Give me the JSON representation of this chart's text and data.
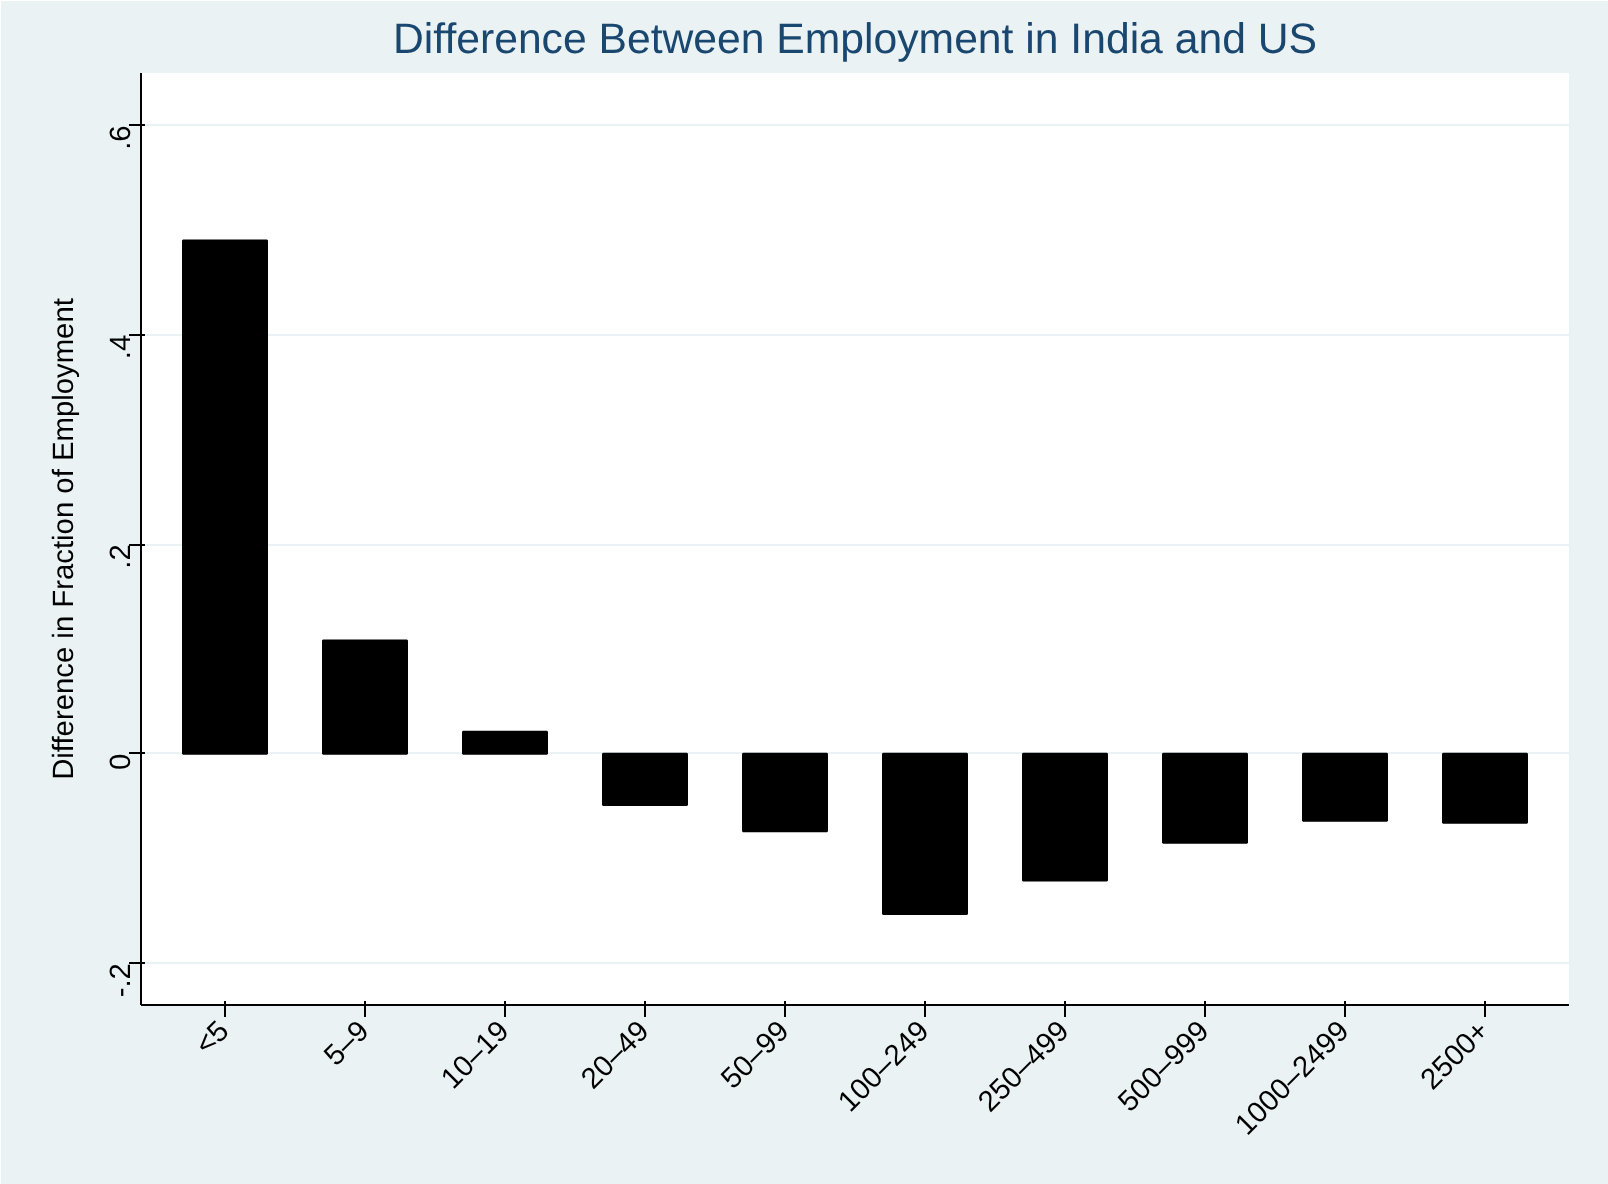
{
  "chart_data": {
    "type": "bar",
    "title": "Difference Between Employment in India and US",
    "ylabel": "Difference in Fraction of Employment",
    "categories": [
      "<5",
      "5–9",
      "10–19",
      "20–49",
      "50–99",
      "100–249",
      "250–499",
      "500–999",
      "1000–2499",
      "2500+"
    ],
    "values": [
      0.49,
      0.108,
      0.021,
      -0.049,
      -0.074,
      -0.153,
      -0.121,
      -0.085,
      -0.064,
      -0.066
    ],
    "color": "#000000",
    "ylim": [
      -0.24,
      0.65
    ],
    "yticks": [
      {
        "value": -0.2,
        "label": "-.2"
      },
      0,
      {
        "value": 0.2,
        "label": ".2"
      },
      {
        "value": 0.4,
        "label": ".4"
      },
      {
        "value": 0.6,
        "label": ".6"
      }
    ],
    "grid": "y"
  }
}
